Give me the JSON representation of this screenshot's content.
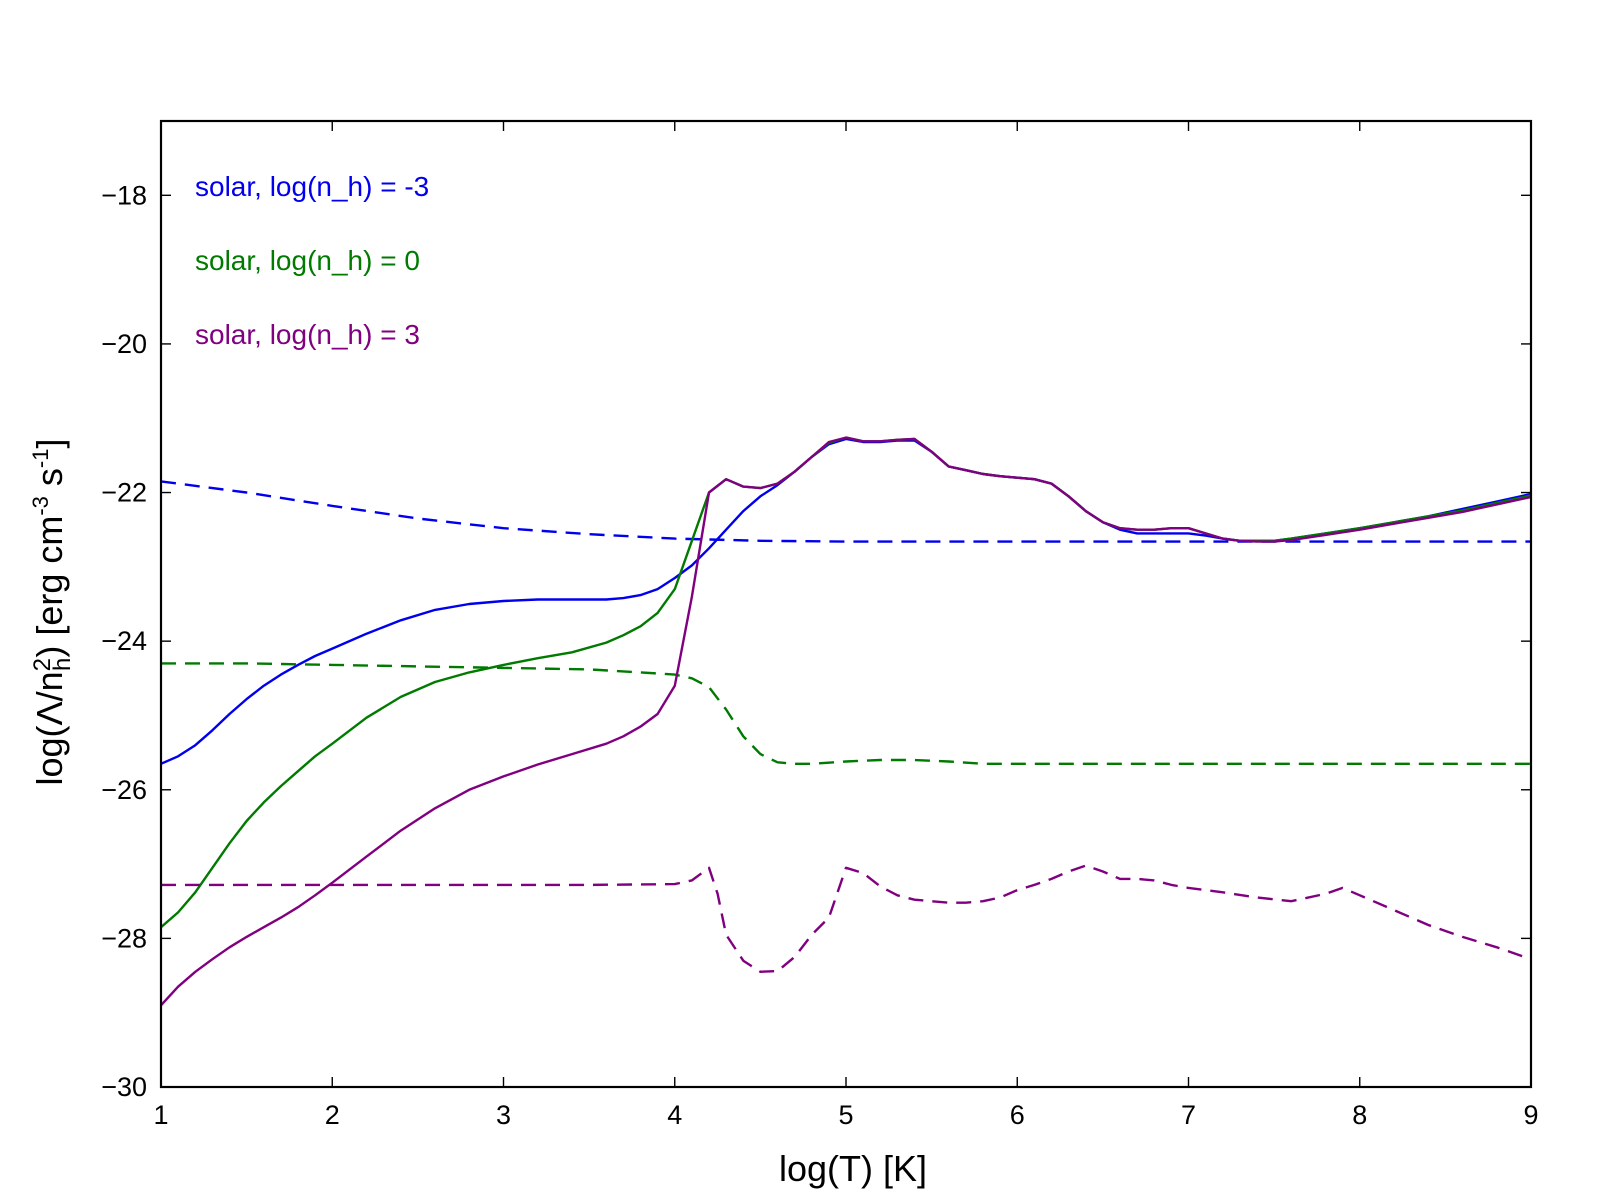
{
  "chart_data": {
    "type": "line",
    "title": "",
    "xlabel": "log(T) [K]",
    "ylabel": {
      "prefix": "log(Λ/n",
      "sub": "h",
      "sup": "2",
      "mid": ") [erg cm",
      "sup2": "-3",
      "mid2": " s",
      "sup3": "-1",
      "suffix": "]"
    },
    "xlim": [
      1,
      9
    ],
    "ylim": [
      -30,
      -17
    ],
    "xticks": [
      1,
      2,
      3,
      4,
      5,
      6,
      7,
      8,
      9
    ],
    "xtick_labels": [
      "1",
      "2",
      "3",
      "4",
      "5",
      "6",
      "7",
      "8",
      "9"
    ],
    "yticks": [
      -30,
      -28,
      -26,
      -24,
      -22,
      -20,
      -18
    ],
    "ytick_labels": [
      "−30",
      "−28",
      "−26",
      "−24",
      "−22",
      "−20",
      "−18"
    ],
    "grid": false,
    "legend_position": "top-left",
    "legend": [
      {
        "label": "solar, log(n_h) = -3",
        "color": "#0000ee"
      },
      {
        "label": "solar, log(n_h) = 0",
        "color": "#007a00"
      },
      {
        "label": "solar, log(n_h) = 3",
        "color": "#800080"
      }
    ],
    "series": [
      {
        "color": "#0000ee",
        "dash": false,
        "x": [
          1.0,
          1.1,
          1.2,
          1.3,
          1.4,
          1.5,
          1.6,
          1.7,
          1.8,
          1.9,
          2.0,
          2.2,
          2.4,
          2.6,
          2.8,
          3.0,
          3.2,
          3.4,
          3.6,
          3.7,
          3.8,
          3.9,
          4.0,
          4.1,
          4.2,
          4.3,
          4.4,
          4.5,
          4.6,
          4.7,
          4.8,
          4.9,
          5.0,
          5.1,
          5.2,
          5.3,
          5.4,
          5.5,
          5.6,
          5.7,
          5.8,
          5.9,
          6.0,
          6.1,
          6.2,
          6.3,
          6.4,
          6.5,
          6.6,
          6.7,
          6.8,
          6.9,
          7.0,
          7.1,
          7.2,
          7.3,
          7.4,
          7.5,
          7.6,
          7.8,
          8.0,
          8.2,
          8.4,
          8.6,
          8.8,
          9.0
        ],
        "y": [
          -25.65,
          -25.55,
          -25.4,
          -25.2,
          -24.98,
          -24.78,
          -24.6,
          -24.45,
          -24.32,
          -24.2,
          -24.1,
          -23.9,
          -23.72,
          -23.58,
          -23.5,
          -23.46,
          -23.44,
          -23.44,
          -23.44,
          -23.42,
          -23.38,
          -23.3,
          -23.15,
          -22.98,
          -22.75,
          -22.5,
          -22.25,
          -22.05,
          -21.9,
          -21.72,
          -21.52,
          -21.35,
          -21.28,
          -21.32,
          -21.32,
          -21.3,
          -21.3,
          -21.45,
          -21.65,
          -21.7,
          -21.75,
          -21.78,
          -21.8,
          -21.82,
          -21.88,
          -22.05,
          -22.25,
          -22.4,
          -22.5,
          -22.55,
          -22.55,
          -22.55,
          -22.55,
          -22.58,
          -22.62,
          -22.65,
          -22.65,
          -22.65,
          -22.62,
          -22.55,
          -22.48,
          -22.4,
          -22.32,
          -22.22,
          -22.12,
          -22.02
        ]
      },
      {
        "color": "#0000ee",
        "dash": true,
        "x": [
          1.0,
          1.5,
          2.0,
          2.5,
          3.0,
          3.5,
          4.0,
          4.5,
          5.0,
          5.5,
          6.0,
          6.5,
          7.0,
          7.5,
          8.0,
          8.5,
          9.0
        ],
        "y": [
          -21.85,
          -22.0,
          -22.18,
          -22.35,
          -22.48,
          -22.56,
          -22.62,
          -22.65,
          -22.66,
          -22.66,
          -22.66,
          -22.66,
          -22.66,
          -22.66,
          -22.66,
          -22.66,
          -22.66
        ]
      },
      {
        "color": "#007a00",
        "dash": false,
        "x": [
          1.0,
          1.1,
          1.2,
          1.3,
          1.4,
          1.5,
          1.6,
          1.7,
          1.8,
          1.9,
          2.0,
          2.2,
          2.4,
          2.6,
          2.8,
          3.0,
          3.2,
          3.4,
          3.6,
          3.7,
          3.8,
          3.9,
          4.0,
          4.1,
          4.2,
          4.3,
          4.4,
          4.5,
          4.6,
          4.7,
          4.8,
          4.9,
          5.0,
          5.1,
          5.2,
          5.3,
          5.4,
          5.5,
          5.6,
          5.7,
          5.8,
          5.9,
          6.0,
          6.1,
          6.2,
          6.3,
          6.4,
          6.5,
          6.6,
          6.7,
          6.8,
          6.9,
          7.0,
          7.1,
          7.2,
          7.3,
          7.4,
          7.5,
          7.6,
          7.8,
          8.0,
          8.2,
          8.4,
          8.6,
          8.8,
          9.0
        ],
        "y": [
          -27.85,
          -27.65,
          -27.38,
          -27.05,
          -26.72,
          -26.42,
          -26.17,
          -25.95,
          -25.75,
          -25.55,
          -25.38,
          -25.03,
          -24.75,
          -24.55,
          -24.42,
          -24.32,
          -24.23,
          -24.15,
          -24.02,
          -23.92,
          -23.8,
          -23.62,
          -23.3,
          -22.65,
          -22.0,
          -21.82,
          -21.92,
          -21.94,
          -21.88,
          -21.72,
          -21.52,
          -21.33,
          -21.26,
          -21.31,
          -21.31,
          -21.29,
          -21.28,
          -21.45,
          -21.65,
          -21.7,
          -21.75,
          -21.78,
          -21.8,
          -21.82,
          -21.88,
          -22.05,
          -22.25,
          -22.4,
          -22.48,
          -22.5,
          -22.5,
          -22.48,
          -22.48,
          -22.55,
          -22.62,
          -22.65,
          -22.65,
          -22.65,
          -22.62,
          -22.55,
          -22.48,
          -22.4,
          -22.32,
          -22.24,
          -22.14,
          -22.04
        ]
      },
      {
        "color": "#007a00",
        "dash": true,
        "x": [
          1.0,
          1.5,
          2.0,
          2.5,
          3.0,
          3.5,
          3.8,
          4.0,
          4.1,
          4.2,
          4.3,
          4.4,
          4.5,
          4.6,
          4.7,
          4.8,
          5.0,
          5.2,
          5.4,
          5.6,
          5.8,
          6.0,
          6.5,
          7.0,
          7.5,
          8.0,
          8.5,
          9.0
        ],
        "y": [
          -24.3,
          -24.3,
          -24.32,
          -24.34,
          -24.36,
          -24.38,
          -24.42,
          -24.45,
          -24.5,
          -24.62,
          -24.92,
          -25.28,
          -25.52,
          -25.63,
          -25.65,
          -25.65,
          -25.62,
          -25.6,
          -25.6,
          -25.62,
          -25.65,
          -25.65,
          -25.65,
          -25.65,
          -25.65,
          -25.65,
          -25.65,
          -25.65
        ]
      },
      {
        "color": "#800080",
        "dash": false,
        "x": [
          1.0,
          1.1,
          1.2,
          1.3,
          1.4,
          1.5,
          1.6,
          1.7,
          1.8,
          1.9,
          2.0,
          2.2,
          2.4,
          2.6,
          2.8,
          3.0,
          3.2,
          3.4,
          3.6,
          3.7,
          3.8,
          3.9,
          4.0,
          4.1,
          4.2,
          4.3,
          4.4,
          4.5,
          4.6,
          4.7,
          4.8,
          4.9,
          5.0,
          5.1,
          5.2,
          5.3,
          5.4,
          5.5,
          5.6,
          5.7,
          5.8,
          5.9,
          6.0,
          6.1,
          6.2,
          6.3,
          6.4,
          6.5,
          6.6,
          6.7,
          6.8,
          6.9,
          7.0,
          7.1,
          7.2,
          7.3,
          7.4,
          7.5,
          7.6,
          7.8,
          8.0,
          8.2,
          8.4,
          8.6,
          8.8,
          9.0
        ],
        "y": [
          -28.9,
          -28.65,
          -28.45,
          -28.28,
          -28.12,
          -27.98,
          -27.85,
          -27.72,
          -27.58,
          -27.42,
          -27.25,
          -26.9,
          -26.55,
          -26.25,
          -26.0,
          -25.82,
          -25.66,
          -25.52,
          -25.38,
          -25.28,
          -25.15,
          -24.98,
          -24.6,
          -23.4,
          -22.0,
          -21.82,
          -21.92,
          -21.94,
          -21.88,
          -21.72,
          -21.52,
          -21.32,
          -21.26,
          -21.31,
          -21.31,
          -21.29,
          -21.28,
          -21.45,
          -21.65,
          -21.7,
          -21.75,
          -21.78,
          -21.8,
          -21.82,
          -21.88,
          -22.05,
          -22.25,
          -22.4,
          -22.48,
          -22.5,
          -22.5,
          -22.48,
          -22.48,
          -22.55,
          -22.62,
          -22.65,
          -22.66,
          -22.66,
          -22.64,
          -22.57,
          -22.5,
          -22.42,
          -22.34,
          -22.26,
          -22.16,
          -22.06
        ]
      },
      {
        "color": "#800080",
        "dash": true,
        "x": [
          1.0,
          1.5,
          2.0,
          2.5,
          3.0,
          3.5,
          4.0,
          4.1,
          4.2,
          4.25,
          4.3,
          4.4,
          4.5,
          4.6,
          4.7,
          4.8,
          4.9,
          5.0,
          5.1,
          5.2,
          5.3,
          5.4,
          5.5,
          5.6,
          5.7,
          5.8,
          5.9,
          6.0,
          6.1,
          6.2,
          6.3,
          6.4,
          6.5,
          6.6,
          6.7,
          6.8,
          6.9,
          7.0,
          7.2,
          7.4,
          7.6,
          7.8,
          7.9,
          8.0,
          8.2,
          8.4,
          8.6,
          8.8,
          9.0
        ],
        "y": [
          -27.28,
          -27.28,
          -27.28,
          -27.28,
          -27.28,
          -27.28,
          -27.27,
          -27.22,
          -27.05,
          -27.4,
          -27.95,
          -28.3,
          -28.45,
          -28.44,
          -28.25,
          -27.95,
          -27.72,
          -27.05,
          -27.12,
          -27.3,
          -27.42,
          -27.48,
          -27.5,
          -27.52,
          -27.52,
          -27.5,
          -27.45,
          -27.35,
          -27.28,
          -27.2,
          -27.1,
          -27.02,
          -27.1,
          -27.2,
          -27.2,
          -27.22,
          -27.28,
          -27.32,
          -27.38,
          -27.45,
          -27.5,
          -27.4,
          -27.32,
          -27.42,
          -27.62,
          -27.82,
          -27.98,
          -28.12,
          -28.28
        ]
      }
    ]
  }
}
